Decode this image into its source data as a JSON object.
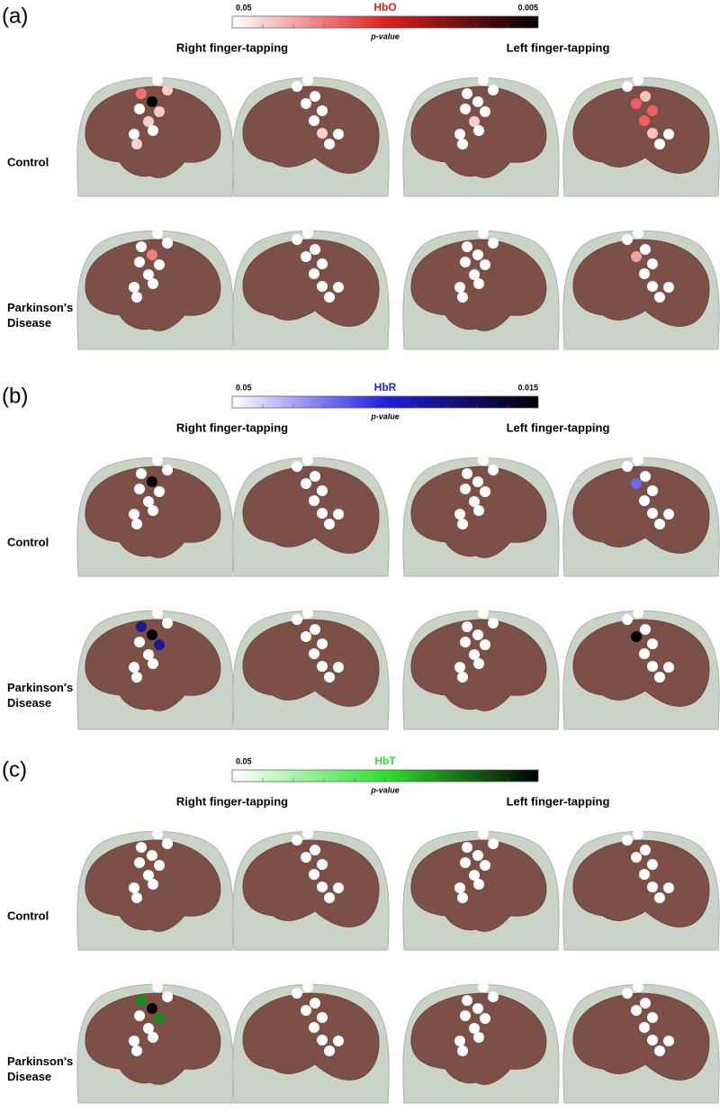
{
  "panels": [
    {
      "label": "(a)",
      "colorbar": {
        "title": "HbO",
        "min": 0.05,
        "max": 0.005,
        "axis_label": "p-value",
        "color": "#e02020",
        "dark": "#000000"
      },
      "columns": [
        "Right finger-tapping",
        "Left finger-tapping"
      ],
      "rows": [
        [
          "Control"
        ],
        [
          "Parkinson's",
          "Disease"
        ]
      ]
    },
    {
      "label": "(b)",
      "colorbar": {
        "title": "HbR",
        "min": 0.05,
        "max": 0.015,
        "axis_label": "p-value",
        "color": "#2020e0",
        "dark": "#000000"
      },
      "columns": [
        "Right finger-tapping",
        "Left finger-tapping"
      ],
      "rows": [
        [
          "Control"
        ],
        [
          "Parkinson's",
          "Disease"
        ]
      ]
    },
    {
      "label": "(c)",
      "colorbar": {
        "title": "HbT",
        "min": 0.05,
        "axis_label": "p-value",
        "color": "#30e030",
        "dark": "#000000"
      },
      "columns": [
        "Right finger-tapping",
        "Left finger-tapping"
      ],
      "rows": [
        [
          "Control"
        ],
        [
          "Parkinson's",
          "Disease"
        ]
      ]
    }
  ]
}
